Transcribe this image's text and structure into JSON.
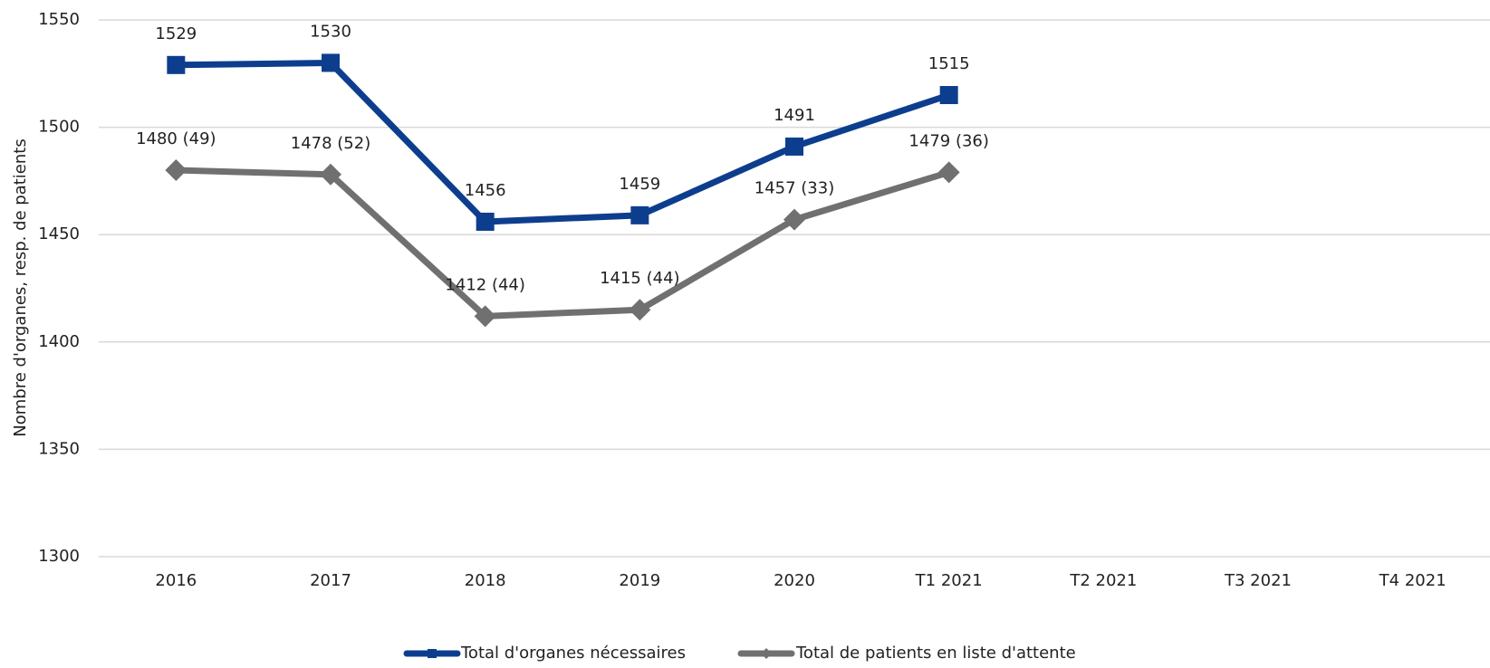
{
  "chart_data": {
    "type": "line",
    "y_label": "Nombre d'organes, resp. de patients",
    "categories": [
      "2016",
      "2017",
      "2018",
      "2019",
      "2020",
      "T1 2021",
      "T2 2021",
      "T3 2021",
      "T4 2021"
    ],
    "series": [
      {
        "name": "Total d'organes nécessaires",
        "color": "#0d3e8e",
        "marker": "square",
        "values": [
          1529,
          1530,
          1456,
          1459,
          1491,
          1515,
          null,
          null,
          null
        ]
      },
      {
        "name": "Total de patients en liste d'attente",
        "color": "#707070",
        "marker": "diamond",
        "values": [
          1480,
          1478,
          1412,
          1415,
          1457,
          1479,
          null,
          null,
          null
        ],
        "value_labels": [
          "1480 (49)",
          "1478 (52)",
          "1412 (44)",
          "1415 (44)",
          "1457 (33)",
          "1479 (36)",
          null,
          null,
          null
        ]
      }
    ],
    "ylim": [
      1300,
      1550
    ],
    "yticks": [
      1300,
      1350,
      1400,
      1450,
      1500,
      1550
    ],
    "grid": true,
    "legend": "bottom"
  }
}
